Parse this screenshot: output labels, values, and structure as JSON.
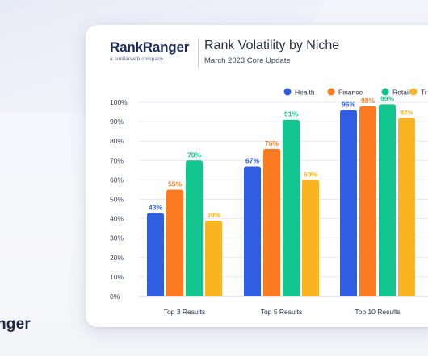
{
  "brand": {
    "name": "RankRanger",
    "tagline": "a similarweb company",
    "footer_text": "nger"
  },
  "header": {
    "title": "Rank Volatility by Niche",
    "subtitle": "March 2023 Core Update"
  },
  "colors": {
    "Health": "#2f5fe0",
    "Finance": "#fb7a22",
    "Retail": "#12c48e",
    "Travel": "#fbb421"
  },
  "chart_data": {
    "type": "bar",
    "categories": [
      "Top 3 Results",
      "Top 5 Results",
      "Top 10 Results"
    ],
    "series": [
      {
        "name": "Health",
        "values": [
          43,
          67,
          96
        ]
      },
      {
        "name": "Finance",
        "values": [
          55,
          76,
          98
        ]
      },
      {
        "name": "Retail",
        "values": [
          70,
          91,
          99
        ]
      },
      {
        "name": "Tr",
        "values": [
          39,
          60,
          92
        ]
      }
    ],
    "value_labels": [
      [
        "43%",
        "67%",
        "96%"
      ],
      [
        "55%",
        "76%",
        "98%"
      ],
      [
        "70%",
        "91%",
        "99%"
      ],
      [
        "39%",
        "60%",
        "92%"
      ]
    ],
    "ylim": [
      0,
      100
    ],
    "yticks": [
      "0%",
      "10%",
      "20%",
      "30%",
      "40%",
      "50%",
      "60%",
      "70%",
      "80%",
      "90%",
      "100%"
    ],
    "grid": true,
    "legend_position": "top-right"
  }
}
